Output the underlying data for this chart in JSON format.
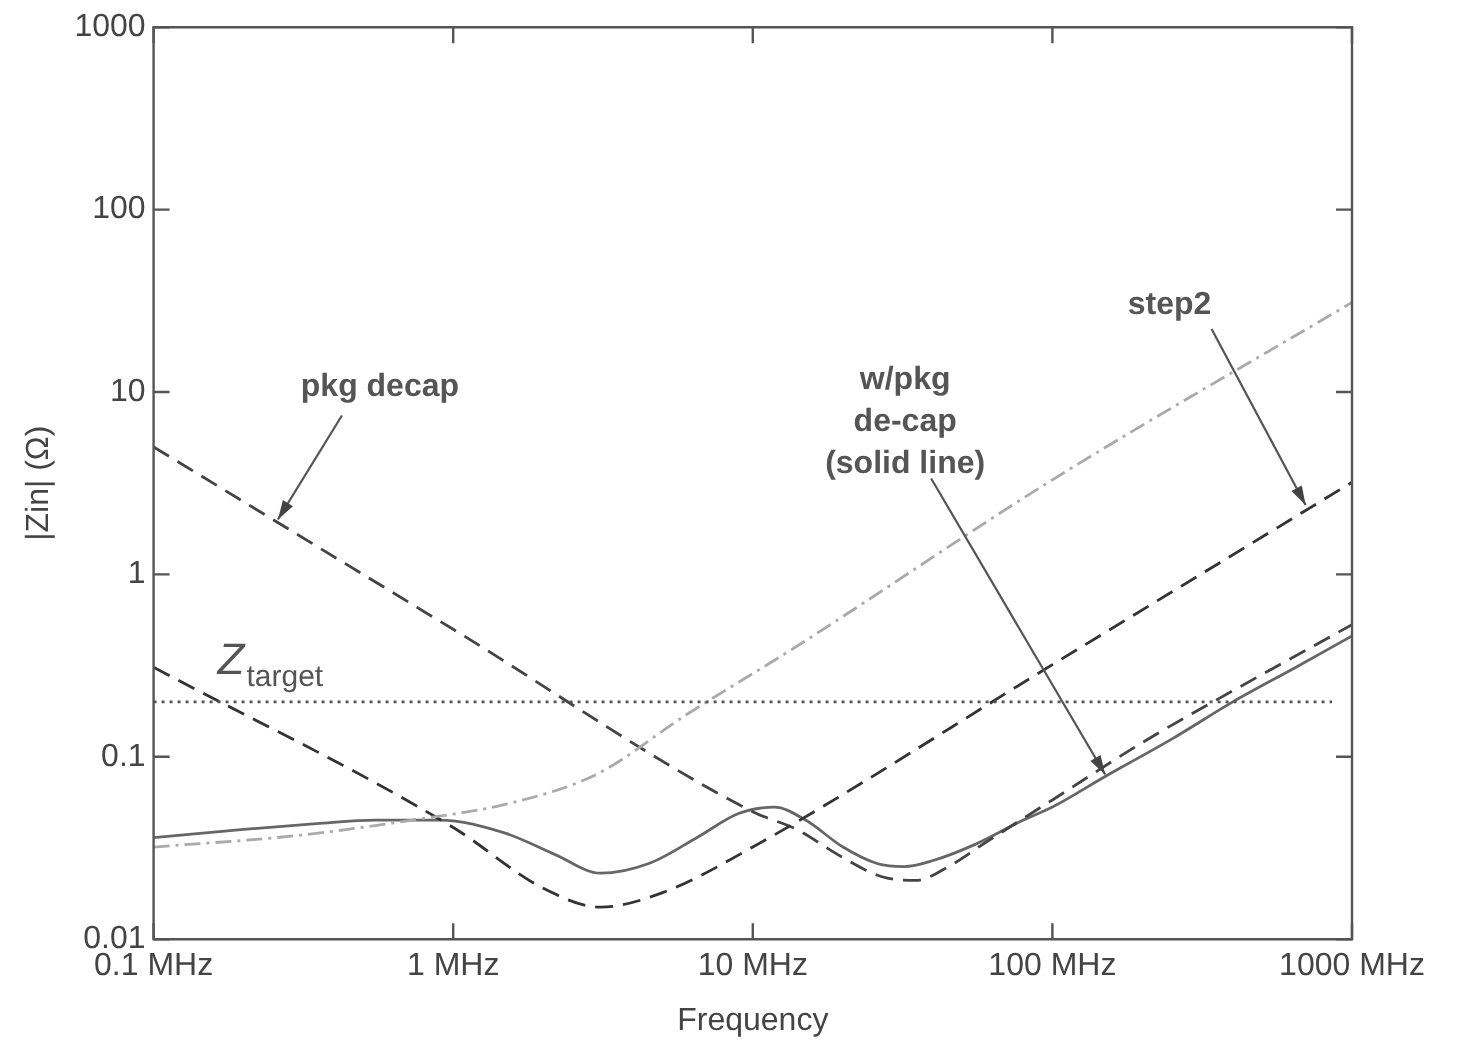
{
  "chart_data": {
    "type": "line",
    "xlabel": "Frequency",
    "ylabel": "|Zin| (Ω)",
    "log": "xy",
    "grid": false,
    "legend": false,
    "marker": "none",
    "xlim": [
      0.1,
      1000
    ],
    "xticks": [
      {
        "value": 0.1,
        "label": "0.1 MHz"
      },
      {
        "value": 1,
        "label": "1 MHz"
      },
      {
        "value": 10,
        "label": "10 MHz"
      },
      {
        "value": 100,
        "label": "100 MHz"
      },
      {
        "value": 1000,
        "label": "1000 MHz"
      }
    ],
    "ylim": [
      0.01,
      1000
    ],
    "yticks": [
      0.01,
      0.1,
      1,
      10,
      100,
      1000
    ],
    "series": [
      {
        "color": "#aaaaaa",
        "line_style": "dashdot",
        "x": [
          0.1,
          0.3,
          0.73,
          1.5,
          3,
          6,
          13.9,
          100,
          1000
        ],
        "values": [
          0.032,
          0.037,
          0.045,
          0.055,
          0.08,
          0.17,
          0.4,
          3.3,
          31
        ]
      },
      {
        "color": "#333333",
        "line_style": "dashed",
        "x": [
          0.1,
          1,
          2,
          3.1,
          5,
          10,
          100,
          1000
        ],
        "values": [
          0.31,
          0.041,
          0.019,
          0.015,
          0.018,
          0.032,
          0.32,
          3.2
        ]
      },
      {
        "color": "#444444",
        "line_style": "dashed",
        "x": [
          0.1,
          1,
          10,
          14,
          20,
          27,
          35,
          45,
          60,
          100,
          200,
          400,
          1000
        ],
        "values": [
          5,
          0.5,
          0.05,
          0.04,
          0.028,
          0.022,
          0.021,
          0.025,
          0.034,
          0.058,
          0.12,
          0.23,
          0.53
        ]
      },
      {
        "color": "#666666",
        "line_style": "solid",
        "x": [
          0.1,
          0.2,
          0.35,
          0.55,
          0.9,
          1.5,
          2.2,
          3.1,
          4.5,
          6.5,
          9,
          11.8,
          15,
          20,
          26,
          32,
          40,
          55,
          80,
          100,
          150,
          250,
          400,
          650,
          1000
        ],
        "values": [
          0.036,
          0.04,
          0.043,
          0.045,
          0.045,
          0.038,
          0.029,
          0.023,
          0.026,
          0.036,
          0.049,
          0.053,
          0.045,
          0.032,
          0.026,
          0.025,
          0.027,
          0.033,
          0.045,
          0.053,
          0.078,
          0.125,
          0.2,
          0.31,
          0.46
        ]
      }
    ],
    "ref_lines": [
      {
        "axis": "y",
        "value": 0.2,
        "label": "Z$_{target}$",
        "color": "#555555",
        "line_style": "dotted"
      }
    ],
    "annotations": [
      {
        "text": "pkg decap",
        "x": 0.26,
        "y": 2
      },
      {
        "text": "w/pkg\nde-cap\n(solid line)",
        "x": 150,
        "y": 0.08
      },
      {
        "text": "step2",
        "x": 700,
        "y": 2.4
      }
    ]
  }
}
